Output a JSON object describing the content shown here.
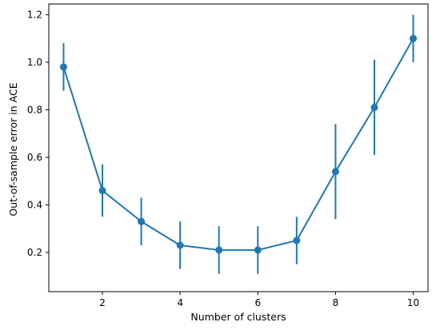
{
  "chart_data": {
    "type": "line",
    "title": "",
    "xlabel": "Number of clusters",
    "ylabel": "Out-of-sample error in ACE",
    "xlim": [
      0.62,
      10.38
    ],
    "ylim": [
      0.035,
      1.245
    ],
    "xticks": [
      2,
      4,
      6,
      8,
      10
    ],
    "yticks": [
      0.2,
      0.4,
      0.6,
      0.8,
      1.0,
      1.2
    ],
    "xtick_labels": [
      "2",
      "4",
      "6",
      "8",
      "10"
    ],
    "ytick_labels": [
      "0.2",
      "0.4",
      "0.6",
      "0.8",
      "1.0",
      "1.2"
    ],
    "grid": false,
    "legend": "none",
    "series": [
      {
        "color": "#1f77b4",
        "x": [
          1,
          2,
          3,
          4,
          5,
          6,
          7,
          8,
          9,
          10
        ],
        "y": [
          0.98,
          0.46,
          0.33,
          0.23,
          0.21,
          0.21,
          0.25,
          0.54,
          0.81,
          1.1
        ],
        "error": [
          0.1,
          0.11,
          0.1,
          0.1,
          0.1,
          0.1,
          0.1,
          0.2,
          0.2,
          0.1
        ]
      }
    ]
  }
}
